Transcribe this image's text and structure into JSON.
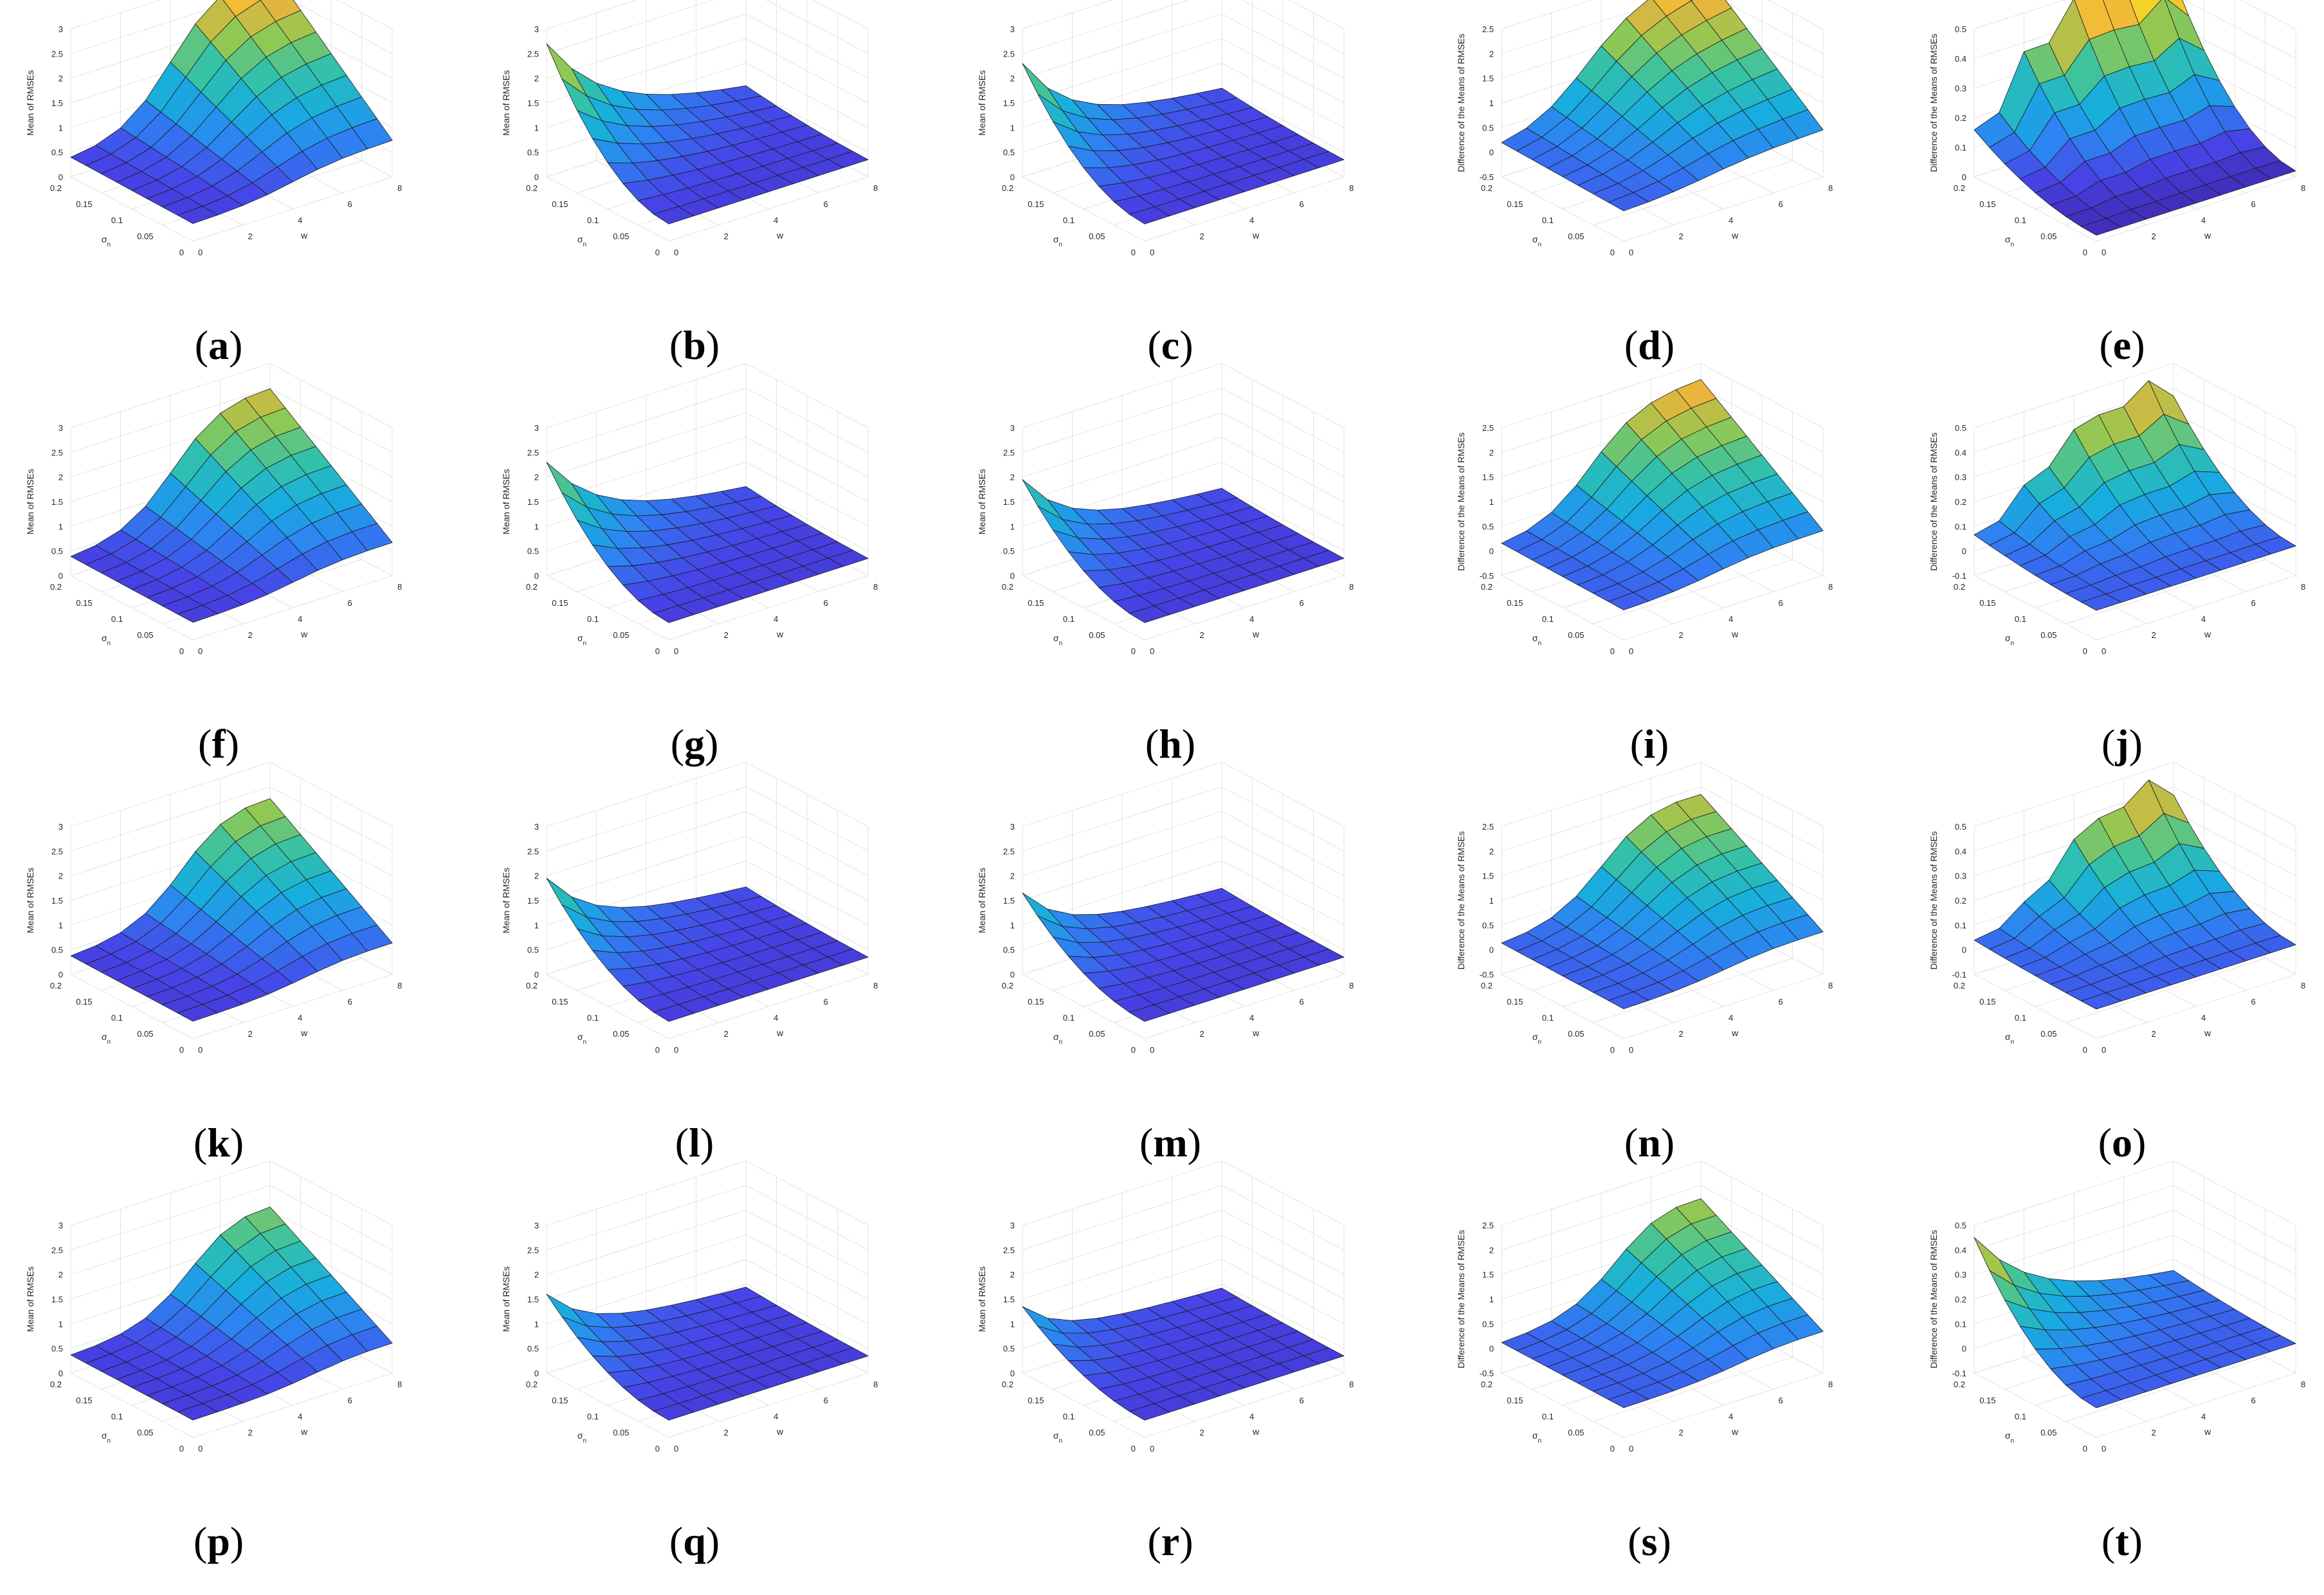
{
  "labels": {
    "sigma_letter": "σ",
    "sigma_subscript": "n",
    "w_label": "w",
    "mean_label": "Mean of RMSEs",
    "diff_label": "Difference of the Means of RMSEs"
  },
  "colormap": [
    "#3e26a8",
    "#4743e7",
    "#2e82f2",
    "#17aede",
    "#35c2a6",
    "#90c853",
    "#f0b33b",
    "#f8e421"
  ],
  "axes": {
    "x_ticks": [
      "0",
      "0.05",
      "0.1",
      "0.15",
      "0.2"
    ],
    "y_ticks": [
      "0",
      "2",
      "4",
      "6",
      "8"
    ],
    "z_mean_ticks": [
      "0",
      "0.5",
      "1",
      "1.5",
      "2",
      "2.5",
      "3"
    ],
    "z_diff_ticks": [
      "-0.5",
      "0",
      "0.5",
      "1",
      "1.5",
      "2",
      "2.5"
    ],
    "z_small_ticks": [
      "-0.1",
      "0",
      "0.1",
      "0.2",
      "0.3",
      "0.4",
      "0.5"
    ],
    "z_small_ticks_e": [
      "0",
      "0.1",
      "0.2",
      "0.3",
      "0.4",
      "0.5"
    ]
  },
  "chart_data": [
    {
      "id": "a",
      "caption": "a",
      "type": "surface",
      "ylabel": "Mean of RMSEs",
      "zlim": [
        0,
        3
      ],
      "z_ticks": "z_mean_ticks",
      "x_range": [
        0,
        0.2
      ],
      "y_range": [
        0,
        8
      ],
      "surface": {
        "kind": "step",
        "z0": 0.35,
        "zmax": 3.0,
        "edge": 4.0,
        "k": 1.0,
        "decay": 0.0
      }
    },
    {
      "id": "b",
      "caption": "b",
      "type": "surface",
      "ylabel": "Mean of RMSEs",
      "zlim": [
        0,
        3
      ],
      "z_ticks": "z_mean_ticks",
      "x_range": [
        0,
        0.2
      ],
      "y_range": [
        0,
        8
      ],
      "surface": {
        "kind": "peak",
        "z0": 0.35,
        "zmax": 2.7,
        "edge": 0.0,
        "k": 1.0,
        "decay": 0.22
      }
    },
    {
      "id": "c",
      "caption": "c",
      "type": "surface",
      "ylabel": "Mean of RMSEs",
      "zlim": [
        0,
        3
      ],
      "z_ticks": "z_mean_ticks",
      "x_range": [
        0,
        0.2
      ],
      "y_range": [
        0,
        8
      ],
      "surface": {
        "kind": "peak",
        "z0": 0.35,
        "zmax": 2.3,
        "edge": 0.0,
        "k": 1.0,
        "decay": 0.3
      }
    },
    {
      "id": "d",
      "caption": "d",
      "type": "surface",
      "ylabel": "Difference of the Means of RMSEs",
      "zlim": [
        -0.5,
        2.5
      ],
      "z_ticks": "z_diff_ticks",
      "x_range": [
        0,
        0.2
      ],
      "y_range": [
        0,
        8
      ],
      "surface": {
        "kind": "step",
        "z0": 0.1,
        "zmax": 1.9,
        "edge": 3.2,
        "k": 0.9,
        "decay": -0.04
      }
    },
    {
      "id": "e",
      "caption": "e",
      "type": "surface",
      "ylabel": "Difference of the Means of RMSEs",
      "zlim": [
        0,
        0.5
      ],
      "z_ticks": "z_small_ticks_e",
      "x_range": [
        0,
        0.2
      ],
      "y_range": [
        0,
        8
      ],
      "surface": {
        "kind": "ridge",
        "z0": 0.02,
        "zmax": 0.62,
        "edge": 1.5,
        "k": 0.8,
        "decay": 0.0
      }
    },
    {
      "id": "f",
      "caption": "f",
      "type": "surface",
      "ylabel": "Mean of RMSEs",
      "zlim": [
        0,
        3
      ],
      "z_ticks": "z_mean_ticks",
      "x_range": [
        0,
        0.2
      ],
      "y_range": [
        0,
        8
      ],
      "surface": {
        "kind": "step",
        "z0": 0.35,
        "zmax": 2.95,
        "edge": 4.2,
        "k": 1.0,
        "decay": 0.02
      }
    },
    {
      "id": "g",
      "caption": "g",
      "type": "surface",
      "ylabel": "Mean of RMSEs",
      "zlim": [
        0,
        3
      ],
      "z_ticks": "z_mean_ticks",
      "x_range": [
        0,
        0.2
      ],
      "y_range": [
        0,
        8
      ],
      "surface": {
        "kind": "peak",
        "z0": 0.35,
        "zmax": 2.3,
        "edge": 0.0,
        "k": 1.0,
        "decay": 0.25
      }
    },
    {
      "id": "h",
      "caption": "h",
      "type": "surface",
      "ylabel": "Mean of RMSEs",
      "zlim": [
        0,
        3
      ],
      "z_ticks": "z_mean_ticks",
      "x_range": [
        0,
        0.2
      ],
      "y_range": [
        0,
        8
      ],
      "surface": {
        "kind": "peak",
        "z0": 0.35,
        "zmax": 1.95,
        "edge": 0.0,
        "k": 1.0,
        "decay": 0.33
      }
    },
    {
      "id": "i",
      "caption": "i",
      "type": "surface",
      "ylabel": "Difference of the Means of RMSEs",
      "zlim": [
        -0.5,
        2.5
      ],
      "z_ticks": "z_diff_ticks",
      "x_range": [
        0,
        0.2
      ],
      "y_range": [
        0,
        8
      ],
      "surface": {
        "kind": "step",
        "z0": 0.1,
        "zmax": 2.2,
        "edge": 3.6,
        "k": 1.0,
        "decay": 0.0
      }
    },
    {
      "id": "j",
      "caption": "j",
      "type": "surface",
      "ylabel": "Difference of the Means of RMSEs",
      "zlim": [
        -0.1,
        0.5
      ],
      "z_ticks": "z_small_ticks",
      "x_range": [
        0,
        0.2
      ],
      "y_range": [
        0,
        8
      ],
      "surface": {
        "kind": "ridge",
        "z0": 0.02,
        "zmax": 0.5,
        "edge": 2.5,
        "k": 0.9,
        "decay": 0.0
      }
    },
    {
      "id": "k",
      "caption": "k",
      "type": "surface",
      "ylabel": "Mean of RMSEs",
      "zlim": [
        0,
        3
      ],
      "z_ticks": "z_mean_ticks",
      "x_range": [
        0,
        0.2
      ],
      "y_range": [
        0,
        8
      ],
      "surface": {
        "kind": "step",
        "z0": 0.35,
        "zmax": 2.95,
        "edge": 4.6,
        "k": 1.0,
        "decay": 0.03
      }
    },
    {
      "id": "l",
      "caption": "l",
      "type": "surface",
      "ylabel": "Mean of RMSEs",
      "zlim": [
        0,
        3
      ],
      "z_ticks": "z_mean_ticks",
      "x_range": [
        0,
        0.2
      ],
      "y_range": [
        0,
        8
      ],
      "surface": {
        "kind": "peak",
        "z0": 0.35,
        "zmax": 1.95,
        "edge": 0.0,
        "k": 1.0,
        "decay": 0.3
      }
    },
    {
      "id": "m",
      "caption": "m",
      "type": "surface",
      "ylabel": "Mean of RMSEs",
      "zlim": [
        0,
        3
      ],
      "z_ticks": "z_mean_ticks",
      "x_range": [
        0,
        0.2
      ],
      "y_range": [
        0,
        8
      ],
      "surface": {
        "kind": "peak",
        "z0": 0.35,
        "zmax": 1.65,
        "edge": 0.0,
        "k": 1.0,
        "decay": 0.36
      }
    },
    {
      "id": "n",
      "caption": "n",
      "type": "surface",
      "ylabel": "Difference of the Means of RMSEs",
      "zlim": [
        -0.5,
        2.5
      ],
      "z_ticks": "z_diff_ticks",
      "x_range": [
        0,
        0.2
      ],
      "y_range": [
        0,
        8
      ],
      "surface": {
        "kind": "step",
        "z0": 0.1,
        "zmax": 2.45,
        "edge": 4.2,
        "k": 1.0,
        "decay": 0.03
      }
    },
    {
      "id": "o",
      "caption": "o",
      "type": "surface",
      "ylabel": "Difference of the Means of RMSEs",
      "zlim": [
        -0.1,
        0.5
      ],
      "z_ticks": "z_small_ticks",
      "x_range": [
        0,
        0.2
      ],
      "y_range": [
        0,
        8
      ],
      "surface": {
        "kind": "ridge",
        "z0": 0.02,
        "zmax": 0.5,
        "edge": 3.2,
        "k": 1.0,
        "decay": 0.0
      }
    },
    {
      "id": "p",
      "caption": "p",
      "type": "surface",
      "ylabel": "Mean of RMSEs",
      "zlim": [
        0,
        3
      ],
      "z_ticks": "z_mean_ticks",
      "x_range": [
        0,
        0.2
      ],
      "y_range": [
        0,
        8
      ],
      "surface": {
        "kind": "step",
        "z0": 0.35,
        "zmax": 3.0,
        "edge": 5.0,
        "k": 1.0,
        "decay": 0.04
      }
    },
    {
      "id": "q",
      "caption": "q",
      "type": "surface",
      "ylabel": "Mean of RMSEs",
      "zlim": [
        0,
        3
      ],
      "z_ticks": "z_mean_ticks",
      "x_range": [
        0,
        0.2
      ],
      "y_range": [
        0,
        8
      ],
      "surface": {
        "kind": "peak",
        "z0": 0.35,
        "zmax": 1.6,
        "edge": 0.0,
        "k": 1.0,
        "decay": 0.34
      }
    },
    {
      "id": "r",
      "caption": "r",
      "type": "surface",
      "ylabel": "Mean of RMSEs",
      "zlim": [
        0,
        3
      ],
      "z_ticks": "z_mean_ticks",
      "x_range": [
        0,
        0.2
      ],
      "y_range": [
        0,
        8
      ],
      "surface": {
        "kind": "peak",
        "z0": 0.35,
        "zmax": 1.35,
        "edge": 0.0,
        "k": 1.0,
        "decay": 0.4
      }
    },
    {
      "id": "s",
      "caption": "s",
      "type": "surface",
      "ylabel": "Difference of the Means of RMSEs",
      "zlim": [
        -0.5,
        2.5
      ],
      "z_ticks": "z_diff_ticks",
      "x_range": [
        0,
        0.2
      ],
      "y_range": [
        0,
        8
      ],
      "surface": {
        "kind": "step",
        "z0": 0.1,
        "zmax": 2.6,
        "edge": 4.8,
        "k": 1.0,
        "decay": 0.04
      }
    },
    {
      "id": "t",
      "caption": "t",
      "type": "surface",
      "ylabel": "Difference of the Means of RMSEs",
      "zlim": [
        -0.1,
        0.5
      ],
      "z_ticks": "z_small_ticks",
      "x_range": [
        0,
        0.2
      ],
      "y_range": [
        0,
        8
      ],
      "surface": {
        "kind": "peak",
        "z0": 0.02,
        "zmax": 0.45,
        "edge": 0.0,
        "k": 1.0,
        "decay": 0.22
      }
    }
  ]
}
